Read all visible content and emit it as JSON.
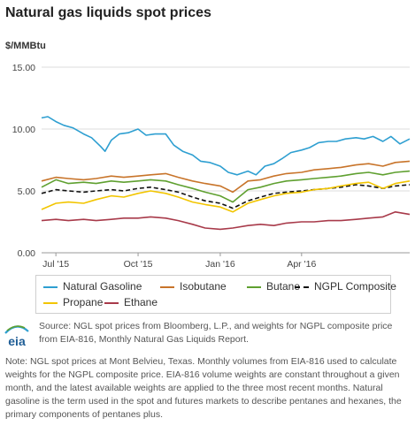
{
  "title": "Natural gas liquids spot prices",
  "y_unit": "$/MMBtu",
  "logo_text": "eia",
  "source": "Source: NGL spot prices from Bloomberg, L.P., and weights for NGPL composite price from EIA-816, Monthly Natural Gas Liquids Report.",
  "note": "Note: NGL spot prices at Mont Belvieu, Texas. Monthly volumes from EIA-816 used to calculate weights for the NGPL composite price. EIA-816 volume weights are constant throughout a given month, and the latest available weights are applied to the three most recent months. Natural gasoline is the term used in the spot and futures markets to describe pentanes and hexanes, the primary components of pentanes plus.",
  "chart_data": {
    "type": "line",
    "xlabel": "",
    "ylabel": "$/MMBtu",
    "ylim": [
      0,
      15
    ],
    "yticks": [
      "0.00",
      "5.00",
      "10.00",
      "15.00"
    ],
    "xlim": [
      "2015-06-15",
      "2016-07-31"
    ],
    "xticks": [
      {
        "date": "2015-07-01",
        "label": "Jul '15"
      },
      {
        "date": "2015-10-01",
        "label": "Oct '15"
      },
      {
        "date": "2016-01-01",
        "label": "Jan '16"
      },
      {
        "date": "2016-04-01",
        "label": "Apr '16"
      }
    ],
    "grid": true,
    "legend": "bottom",
    "series": [
      {
        "name": "Natural Gasoline",
        "color": "#2e9fd1",
        "dash": false,
        "x": [
          "2015-06-15",
          "2015-06-22",
          "2015-07-01",
          "2015-07-10",
          "2015-07-20",
          "2015-08-01",
          "2015-08-10",
          "2015-08-20",
          "2015-08-25",
          "2015-09-01",
          "2015-09-10",
          "2015-09-20",
          "2015-10-01",
          "2015-10-10",
          "2015-10-20",
          "2015-11-01",
          "2015-11-10",
          "2015-11-20",
          "2015-12-01",
          "2015-12-10",
          "2015-12-20",
          "2016-01-01",
          "2016-01-10",
          "2016-01-20",
          "2016-02-01",
          "2016-02-10",
          "2016-02-20",
          "2016-03-01",
          "2016-03-10",
          "2016-03-20",
          "2016-04-01",
          "2016-04-10",
          "2016-04-20",
          "2016-05-01",
          "2016-05-10",
          "2016-05-20",
          "2016-06-01",
          "2016-06-10",
          "2016-06-20",
          "2016-07-01",
          "2016-07-10",
          "2016-07-20",
          "2016-07-31"
        ],
        "y": [
          10.9,
          11.0,
          10.6,
          10.3,
          10.1,
          9.6,
          9.3,
          8.6,
          8.2,
          9.1,
          9.6,
          9.7,
          10.0,
          9.5,
          9.6,
          9.6,
          8.7,
          8.2,
          7.9,
          7.4,
          7.3,
          7.0,
          6.5,
          6.3,
          6.6,
          6.3,
          7.0,
          7.2,
          7.6,
          8.1,
          8.3,
          8.5,
          8.9,
          9.0,
          9.0,
          9.2,
          9.3,
          9.2,
          9.4,
          9.0,
          9.4,
          8.8,
          9.2
        ]
      },
      {
        "name": "Isobutane",
        "color": "#c8742a",
        "dash": false,
        "x": [
          "2015-06-15",
          "2015-07-01",
          "2015-07-15",
          "2015-08-01",
          "2015-08-15",
          "2015-09-01",
          "2015-09-15",
          "2015-10-01",
          "2015-10-15",
          "2015-11-01",
          "2015-11-15",
          "2015-12-01",
          "2015-12-15",
          "2016-01-01",
          "2016-01-15",
          "2016-02-01",
          "2016-02-15",
          "2016-03-01",
          "2016-03-15",
          "2016-04-01",
          "2016-04-15",
          "2016-05-01",
          "2016-05-15",
          "2016-06-01",
          "2016-06-15",
          "2016-07-01",
          "2016-07-15",
          "2016-07-31"
        ],
        "y": [
          5.8,
          6.1,
          6.0,
          5.9,
          6.0,
          6.2,
          6.1,
          6.2,
          6.3,
          6.4,
          6.1,
          5.8,
          5.6,
          5.4,
          4.9,
          5.8,
          5.9,
          6.2,
          6.4,
          6.5,
          6.7,
          6.8,
          6.9,
          7.1,
          7.2,
          7.0,
          7.3,
          7.4
        ]
      },
      {
        "name": "Butane",
        "color": "#5fa030",
        "dash": false,
        "x": [
          "2015-06-15",
          "2015-07-01",
          "2015-07-15",
          "2015-08-01",
          "2015-08-15",
          "2015-09-01",
          "2015-09-15",
          "2015-10-01",
          "2015-10-15",
          "2015-11-01",
          "2015-11-15",
          "2015-12-01",
          "2015-12-15",
          "2016-01-01",
          "2016-01-15",
          "2016-02-01",
          "2016-02-15",
          "2016-03-01",
          "2016-03-15",
          "2016-04-01",
          "2016-04-15",
          "2016-05-01",
          "2016-05-15",
          "2016-06-01",
          "2016-06-15",
          "2016-07-01",
          "2016-07-15",
          "2016-07-31"
        ],
        "y": [
          5.3,
          5.9,
          5.6,
          5.7,
          5.6,
          5.8,
          5.7,
          5.8,
          5.9,
          5.8,
          5.5,
          5.2,
          4.9,
          4.6,
          4.1,
          5.1,
          5.3,
          5.6,
          5.8,
          5.9,
          6.0,
          6.1,
          6.2,
          6.4,
          6.5,
          6.3,
          6.5,
          6.6
        ]
      },
      {
        "name": "NGPL Composite",
        "color": "#111111",
        "dash": true,
        "x": [
          "2015-06-15",
          "2015-07-01",
          "2015-07-15",
          "2015-08-01",
          "2015-08-15",
          "2015-09-01",
          "2015-09-15",
          "2015-10-01",
          "2015-10-15",
          "2015-11-01",
          "2015-11-15",
          "2015-12-01",
          "2015-12-15",
          "2016-01-01",
          "2016-01-15",
          "2016-02-01",
          "2016-02-15",
          "2016-03-01",
          "2016-03-15",
          "2016-04-01",
          "2016-04-15",
          "2016-05-01",
          "2016-05-15",
          "2016-06-01",
          "2016-06-15",
          "2016-07-01",
          "2016-07-15",
          "2016-07-31"
        ],
        "y": [
          4.8,
          5.1,
          5.0,
          4.9,
          5.0,
          5.1,
          5.0,
          5.2,
          5.3,
          5.1,
          4.9,
          4.5,
          4.2,
          4.0,
          3.6,
          4.2,
          4.5,
          4.8,
          4.9,
          5.0,
          5.1,
          5.2,
          5.3,
          5.5,
          5.4,
          5.2,
          5.4,
          5.5
        ]
      },
      {
        "name": "Propane",
        "color": "#f2c500",
        "dash": false,
        "x": [
          "2015-06-15",
          "2015-07-01",
          "2015-07-15",
          "2015-08-01",
          "2015-08-15",
          "2015-09-01",
          "2015-09-15",
          "2015-10-01",
          "2015-10-15",
          "2015-11-01",
          "2015-11-15",
          "2015-12-01",
          "2015-12-15",
          "2016-01-01",
          "2016-01-15",
          "2016-02-01",
          "2016-02-15",
          "2016-03-01",
          "2016-03-15",
          "2016-04-01",
          "2016-04-15",
          "2016-05-01",
          "2016-05-15",
          "2016-06-01",
          "2016-06-15",
          "2016-07-01",
          "2016-07-15",
          "2016-07-31"
        ],
        "y": [
          3.5,
          4.0,
          4.1,
          4.0,
          4.3,
          4.6,
          4.5,
          4.8,
          5.0,
          4.8,
          4.5,
          4.1,
          3.9,
          3.7,
          3.3,
          4.0,
          4.3,
          4.6,
          4.8,
          4.9,
          5.1,
          5.2,
          5.4,
          5.6,
          5.7,
          5.2,
          5.6,
          5.8
        ]
      },
      {
        "name": "Ethane",
        "color": "#a83a4a",
        "dash": false,
        "x": [
          "2015-06-15",
          "2015-07-01",
          "2015-07-15",
          "2015-08-01",
          "2015-08-15",
          "2015-09-01",
          "2015-09-15",
          "2015-10-01",
          "2015-10-15",
          "2015-11-01",
          "2015-11-15",
          "2015-12-01",
          "2015-12-15",
          "2016-01-01",
          "2016-01-15",
          "2016-02-01",
          "2016-02-15",
          "2016-03-01",
          "2016-03-15",
          "2016-04-01",
          "2016-04-15",
          "2016-05-01",
          "2016-05-15",
          "2016-06-01",
          "2016-06-15",
          "2016-07-01",
          "2016-07-15",
          "2016-07-31"
        ],
        "y": [
          2.6,
          2.7,
          2.6,
          2.7,
          2.6,
          2.7,
          2.8,
          2.8,
          2.9,
          2.8,
          2.6,
          2.3,
          2.0,
          1.9,
          2.0,
          2.2,
          2.3,
          2.2,
          2.4,
          2.5,
          2.5,
          2.6,
          2.6,
          2.7,
          2.8,
          2.9,
          3.3,
          3.1
        ]
      }
    ]
  }
}
